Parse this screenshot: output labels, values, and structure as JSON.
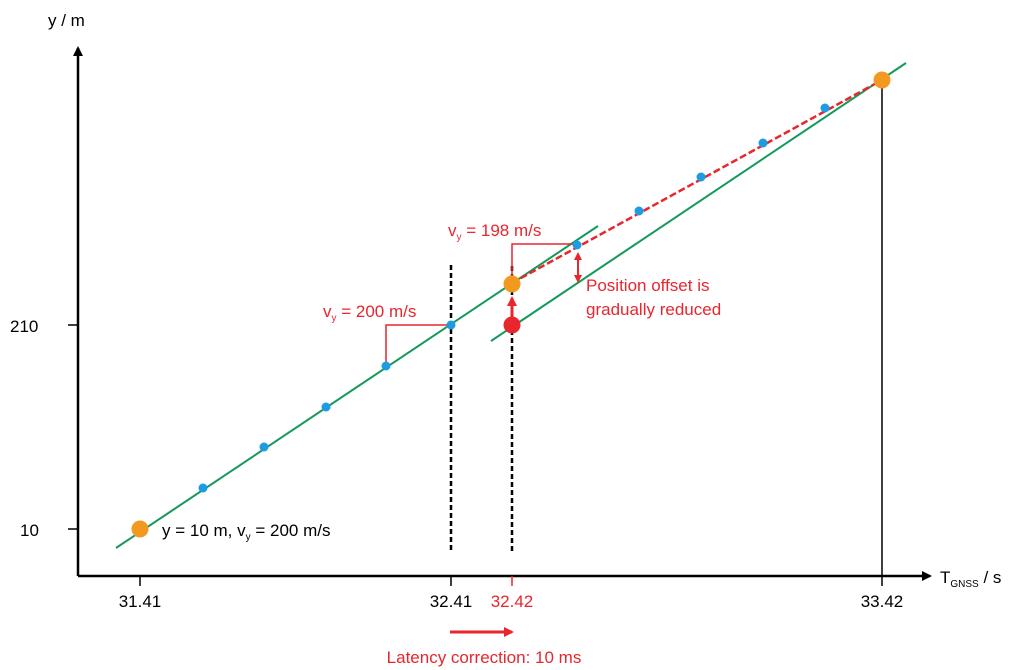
{
  "axes": {
    "y_label": "y / m",
    "x_label_main": "T",
    "x_label_sub": "GNSS",
    "x_label_tail": " / s",
    "x_ticks": [
      "31.41",
      "32.41",
      "32.42",
      "33.42"
    ],
    "y_ticks": [
      "210",
      "10"
    ]
  },
  "annotations": {
    "start_label_pre": "y = 10 m, v",
    "start_label_sub": "y",
    "start_label_post": " = 200 m/s",
    "vy200_pre": "v",
    "vy200_sub": "y",
    "vy200_post": " = 200 m/s",
    "vy198_pre": "v",
    "vy198_sub": "y",
    "vy198_post": " = 198 m/s",
    "offset_line1": "Position offset is",
    "offset_line2": "gradually reduced",
    "latency_label": "Latency correction: 10 ms"
  },
  "colors": {
    "axis": "#000000",
    "trajectory": "#119a5a",
    "sample_point": "#1d9be3",
    "key_point": "#f29a1f",
    "correction": "#e8262e"
  }
}
